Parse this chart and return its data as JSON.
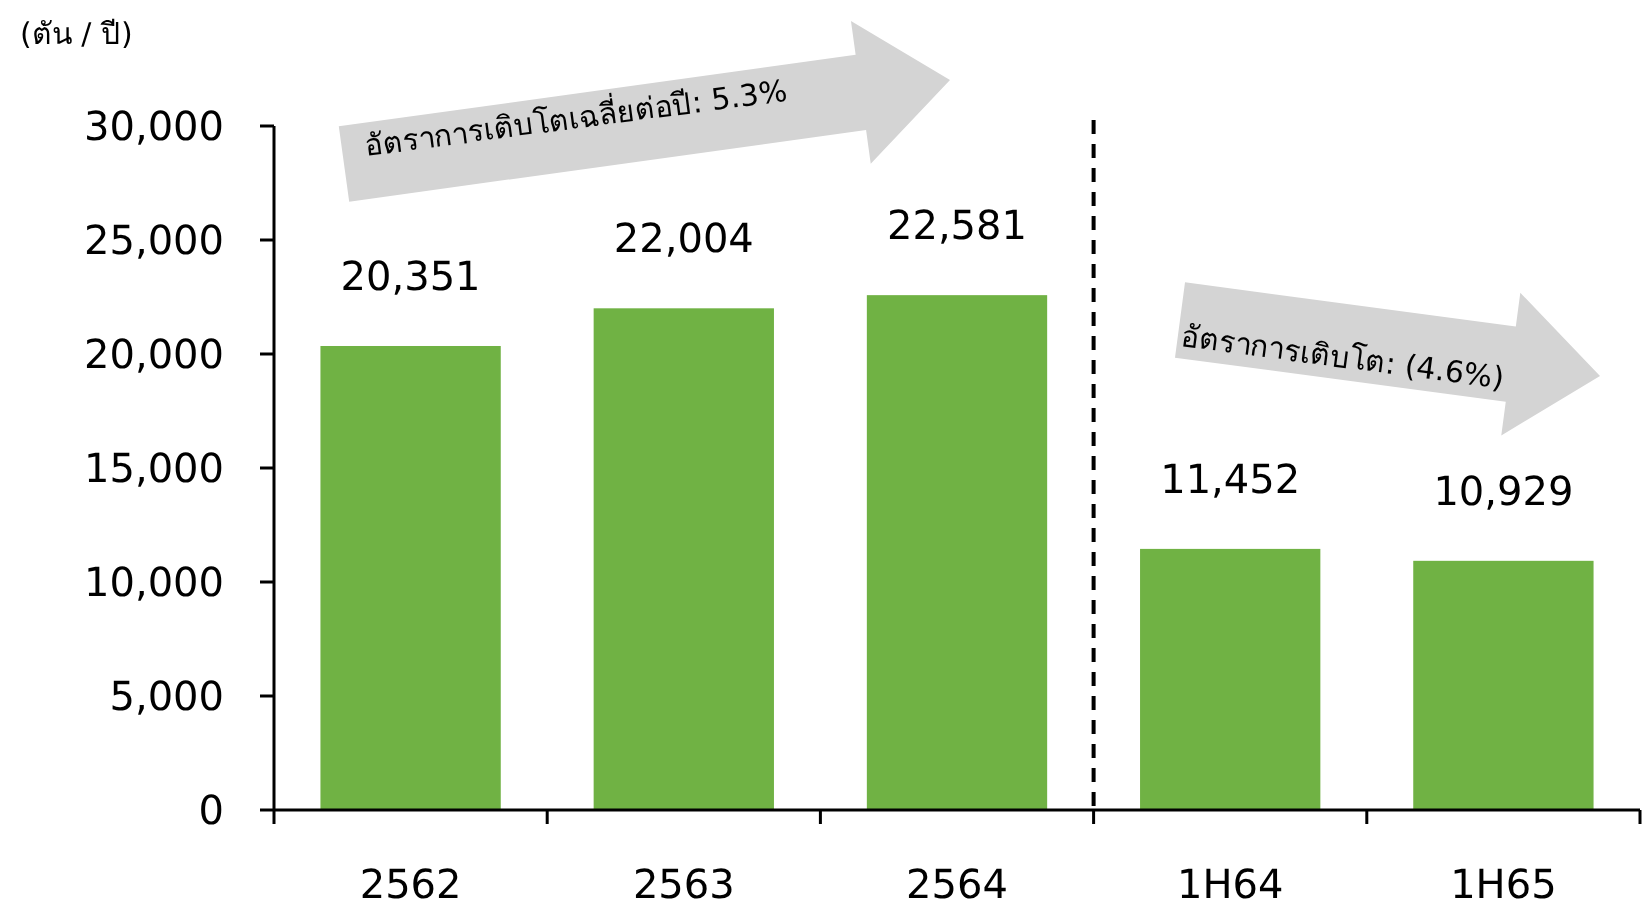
{
  "chart_data": {
    "type": "bar",
    "ylabel": "(ตัน / ปี)",
    "categories": [
      "2562",
      "2563",
      "2564",
      "1H64",
      "1H65"
    ],
    "values": [
      20351,
      22004,
      22581,
      11452,
      10929
    ],
    "value_labels": [
      "20,351",
      "22,004",
      "22,581",
      "11,452",
      "10,929"
    ],
    "color": "#70b244",
    "ylim": [
      0,
      30000
    ],
    "yticks": [
      {
        "value": 0,
        "label": "0"
      },
      {
        "value": 5000,
        "label": "5,000"
      },
      {
        "value": 10000,
        "label": "10,000"
      },
      {
        "value": 15000,
        "label": "15,000"
      },
      {
        "value": 20000,
        "label": "20,000"
      },
      {
        "value": 25000,
        "label": "25,000"
      },
      {
        "value": 30000,
        "label": "30,000"
      }
    ],
    "annotations": [
      "อัตราการเติบโตเฉลี่ยต่อปี: 5.3%",
      "อัตราการเติบโต: (4.6%)"
    ],
    "grid": false
  }
}
